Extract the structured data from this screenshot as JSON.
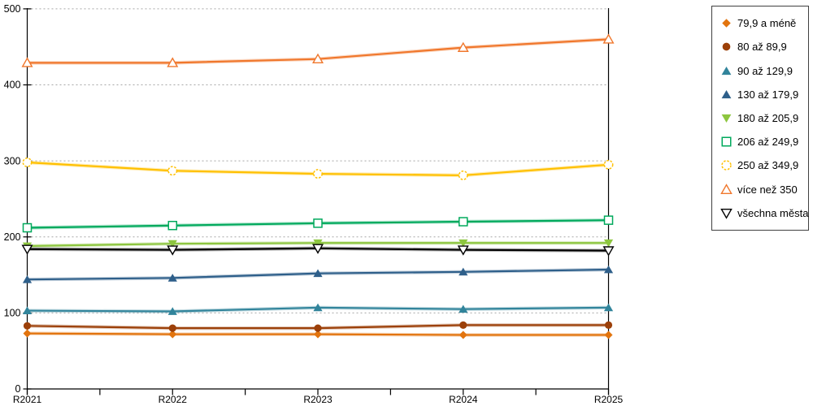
{
  "chart_data": {
    "type": "line",
    "title": "",
    "xlabel": "",
    "ylabel": "",
    "categories": [
      "R2021",
      "R2022",
      "R2023",
      "R2024",
      "R2025"
    ],
    "yticks": [
      0,
      100,
      200,
      300,
      400,
      500
    ],
    "ylim": [
      0,
      500
    ],
    "grid": "horizontal-dotted",
    "legend_position": "right",
    "series": [
      {
        "name": "79,9 a méně",
        "marker": "diamond",
        "color": "#E2740E",
        "values": [
          73,
          72,
          72,
          71,
          71
        ]
      },
      {
        "name": "80 až 89,9",
        "marker": "circle",
        "color": "#9C4009",
        "values": [
          83,
          80,
          80,
          84,
          84
        ]
      },
      {
        "name": "90 až 129,9",
        "marker": "triangle-up",
        "color": "#31849B",
        "values": [
          103,
          102,
          107,
          105,
          107
        ]
      },
      {
        "name": "130 až 179,9",
        "marker": "triangle-up",
        "color": "#2E5F8A",
        "values": [
          144,
          146,
          152,
          154,
          157
        ]
      },
      {
        "name": "180 až 205,9",
        "marker": "triangle-down",
        "color": "#8DC63F",
        "values": [
          188,
          191,
          192,
          192,
          192
        ]
      },
      {
        "name": "206 až 249,9",
        "marker": "square-open",
        "color": "#00A95C",
        "values": [
          212,
          215,
          218,
          220,
          222
        ]
      },
      {
        "name": "250 až 349,9",
        "marker": "circle-open-dashed",
        "color": "#FFC000",
        "values": [
          298,
          287,
          283,
          281,
          295
        ]
      },
      {
        "name": "více než 350",
        "marker": "triangle-up-open",
        "color": "#F0772C",
        "values": [
          429,
          429,
          434,
          449,
          460
        ]
      },
      {
        "name": "všechna města",
        "marker": "triangle-down-open",
        "color": "#000000",
        "values": [
          184,
          183,
          185,
          183,
          182
        ]
      }
    ],
    "colors": {
      "axis": "#000000",
      "gridline": "#A6A6A6",
      "tick_label": "#000000",
      "legend_border": "#404040",
      "background": "#FFFFFF"
    }
  }
}
